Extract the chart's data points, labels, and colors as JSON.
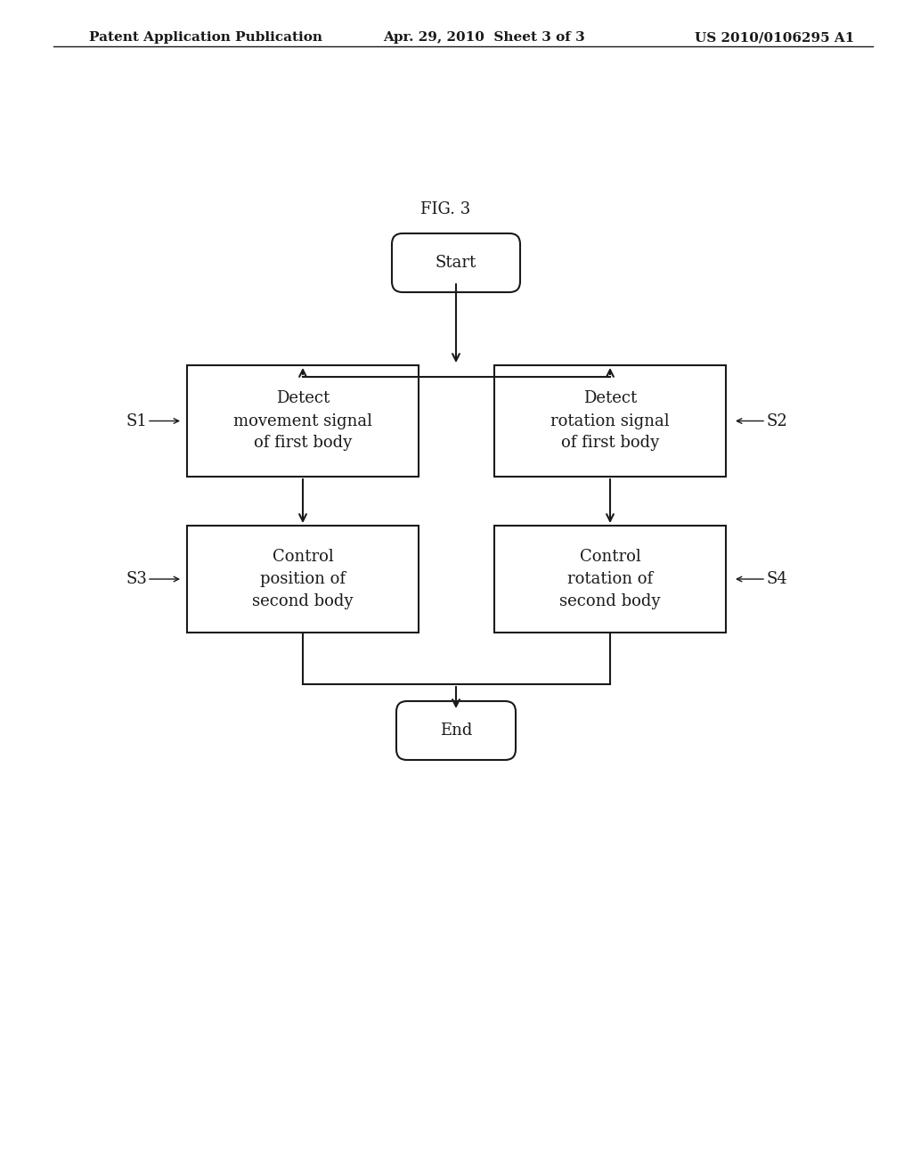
{
  "background_color": "#ffffff",
  "header_left": "Patent Application Publication",
  "header_center": "Apr. 29, 2010  Sheet 3 of 3",
  "header_right": "US 2010/0106295 A1",
  "fig_label": "FIG. 3",
  "start_label": "Start",
  "end_label": "End",
  "box1_lines": [
    "Detect",
    "movement signal",
    "of first body"
  ],
  "box2_lines": [
    "Detect",
    "rotation signal",
    "of first body"
  ],
  "box3_lines": [
    "Control",
    "position of",
    "second body"
  ],
  "box4_lines": [
    "Control",
    "rotation of",
    "second body"
  ],
  "s1": "S1",
  "s2": "S2",
  "s3": "S3",
  "s4": "S4",
  "text_color": "#1a1a1a",
  "line_color": "#1a1a1a",
  "font_size_header": 11,
  "font_size_box": 13,
  "font_size_label": 13,
  "font_size_fig": 13,
  "font_size_terminal": 13
}
